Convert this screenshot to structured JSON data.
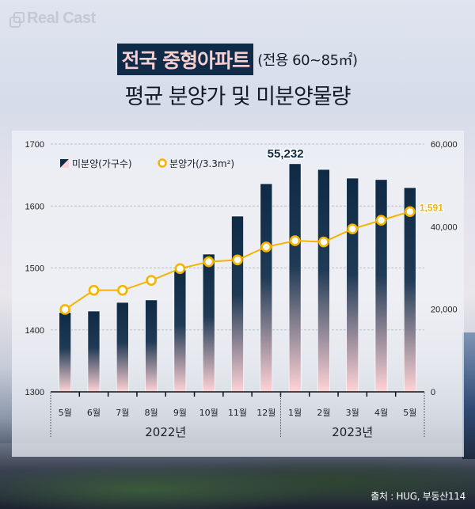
{
  "brand": {
    "logo_text": "Real Cast"
  },
  "title": {
    "highlight": "전국 중형아파트",
    "subtitle": "(전용 60~85㎡)",
    "line2": "평균 분양가 및 미분양물량"
  },
  "source": "출처 : HUG, 부동산114",
  "colors": {
    "bar_top": "#0f2a45",
    "bar_bottom": "#ffd3d6",
    "line": "#f5b400",
    "title_bg": "#0f2b47",
    "title_text": "#f7cfd1",
    "peak_label": "#0f2a45",
    "last_label": "#f5b400"
  },
  "chart_data": {
    "type": "bar+line",
    "title": "전국 중형아파트 (전용 60~85㎡) 평균 분양가 및 미분양물량",
    "categories": [
      "5월",
      "6월",
      "7월",
      "8월",
      "9월",
      "10월",
      "11월",
      "12월",
      "1월",
      "2월",
      "3월",
      "4월",
      "5월"
    ],
    "year_groups": [
      {
        "label": "2022년",
        "start": 0,
        "end": 7
      },
      {
        "label": "2023년",
        "start": 8,
        "end": 12
      }
    ],
    "series": [
      {
        "name": "미분양(가구수)",
        "type": "bar",
        "axis": "right",
        "values": [
          19200,
          19550,
          21650,
          22250,
          29500,
          33350,
          42550,
          50400,
          55232,
          53850,
          51750,
          51400,
          49450
        ]
      },
      {
        "name": "분양가(/3.3m²)",
        "type": "line",
        "axis": "left",
        "values": [
          1433,
          1464,
          1464,
          1480,
          1499,
          1510,
          1513,
          1534,
          1544,
          1542,
          1563,
          1577,
          1591
        ]
      }
    ],
    "annotations": [
      {
        "series": 0,
        "index": 8,
        "text": "55,232"
      },
      {
        "series": 1,
        "index": 12,
        "text": "1,591"
      }
    ],
    "left_axis": {
      "ylim": [
        1300,
        1700
      ],
      "ticks": [
        "1300",
        "1400",
        "1500",
        "1600",
        "1700"
      ]
    },
    "right_axis": {
      "ylim": [
        0,
        60000
      ],
      "ticks": [
        "0",
        "20,000",
        "40,000",
        "60,000"
      ]
    },
    "legend": {
      "position": "top-left",
      "entries": [
        "미분양(가구수)",
        "분양가(/3.3m²)"
      ]
    },
    "grid": true
  }
}
